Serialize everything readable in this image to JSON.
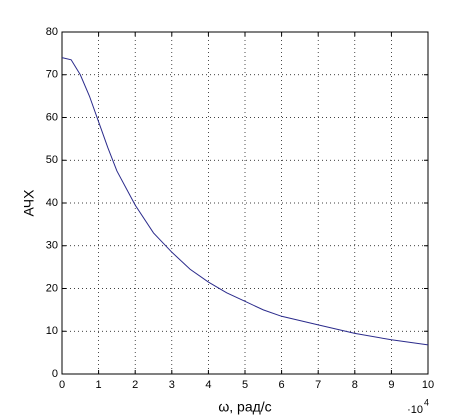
{
  "chart_data": {
    "type": "line",
    "x_label": "ω, рад/с",
    "y_label": "АЧХ",
    "x_scale_label": {
      "base": "·10",
      "exponent": "4"
    },
    "x": [
      0,
      0.25,
      0.5,
      0.75,
      1,
      1.25,
      1.5,
      2,
      2.5,
      3,
      3.5,
      4,
      4.5,
      5,
      5.5,
      6,
      7,
      8,
      9,
      10
    ],
    "series": [
      {
        "color": "#2b2b8c",
        "values": [
          74,
          73.5,
          70,
          65,
          59,
          53,
          47.5,
          39.5,
          33,
          28.5,
          24.5,
          21.5,
          19,
          17,
          15,
          13.5,
          11.5,
          9.5,
          8,
          6.8
        ]
      }
    ],
    "xlim": [
      0,
      10
    ],
    "xticks": [
      0,
      1,
      2,
      3,
      4,
      5,
      6,
      7,
      8,
      9,
      10
    ],
    "ylim": [
      0,
      80
    ],
    "yticks": [
      0,
      10,
      20,
      30,
      40,
      50,
      60,
      70,
      80
    ],
    "grid": true
  }
}
